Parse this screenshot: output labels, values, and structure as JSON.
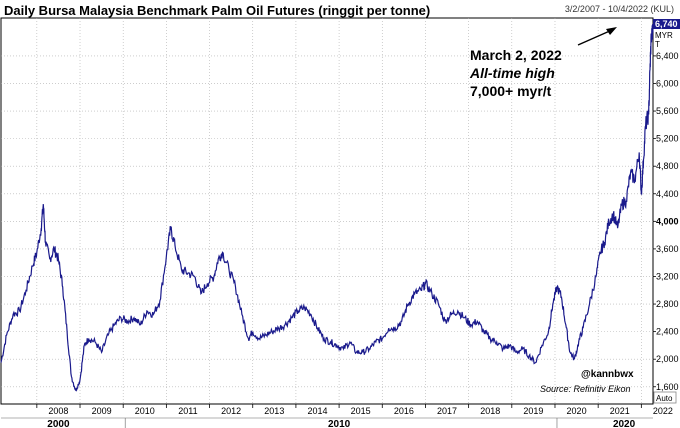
{
  "chart_data": {
    "type": "line",
    "title": "Daily Bursa Malaysia Benchmark Palm Oil Futures (ringgit per tonne)",
    "date_range": "3/2/2007 - 10/4/2022 (KUL)",
    "y_ticks": [
      "1,600",
      "2,000",
      "2,400",
      "2,800",
      "3,200",
      "3,600",
      "4,000",
      "4,400",
      "4,800",
      "5,200",
      "5,600",
      "6,000",
      "6,400"
    ],
    "y_tick_values": [
      1600,
      2000,
      2400,
      2800,
      3200,
      3600,
      4000,
      4400,
      4800,
      5200,
      5600,
      6000,
      6400
    ],
    "ylim": [
      1350,
      6950
    ],
    "xlim": [
      2007.17,
      2022.27
    ],
    "x_ticks": [
      "2008",
      "2009",
      "2010",
      "2011",
      "2012",
      "2013",
      "2014",
      "2015",
      "2016",
      "2017",
      "2018",
      "2019",
      "2020",
      "2021",
      "2022"
    ],
    "x_tick_values": [
      2008,
      2009,
      2010,
      2011,
      2012,
      2013,
      2014,
      2015,
      2016,
      2017,
      2018,
      2019,
      2020,
      2021,
      2022
    ],
    "x_major_labels": [
      "2000",
      "2010",
      "2020"
    ],
    "x_major_values": [
      2008.5,
      2015,
      2021.6
    ],
    "last_value": "6,740",
    "unit_label": "MYR\nT",
    "unit_lines": [
      "MYR",
      "T"
    ],
    "annotation": {
      "line1": "March 2, 2022",
      "line2": "All-time high",
      "line3": "7,000+ myr/t"
    },
    "handle": "@kannbwx",
    "source": "Source: Refinitiv Eikon",
    "auto_label": "Auto",
    "series": [
      {
        "x": [
          2007.17,
          2007.3,
          2007.45,
          2007.6,
          2007.75,
          2007.9,
          2008.0,
          2008.1,
          2008.15,
          2008.2,
          2008.3,
          2008.4,
          2008.5,
          2008.6,
          2008.7,
          2008.8,
          2008.9,
          2009.0,
          2009.1,
          2009.2,
          2009.35,
          2009.5,
          2009.65,
          2009.8,
          2009.95,
          2010.1,
          2010.25,
          2010.4,
          2010.55,
          2010.7,
          2010.85,
          2011.0,
          2011.1,
          2011.2,
          2011.35,
          2011.5,
          2011.65,
          2011.8,
          2011.95,
          2012.1,
          2012.2,
          2012.3,
          2012.45,
          2012.6,
          2012.75,
          2012.9,
          2013.0,
          2013.15,
          2013.3,
          2013.45,
          2013.6,
          2013.75,
          2013.9,
          2014.05,
          2014.2,
          2014.35,
          2014.5,
          2014.65,
          2014.8,
          2014.95,
          2015.1,
          2015.25,
          2015.4,
          2015.55,
          2015.7,
          2015.85,
          2016.0,
          2016.15,
          2016.3,
          2016.45,
          2016.6,
          2016.75,
          2016.9,
          2017.0,
          2017.15,
          2017.3,
          2017.45,
          2017.6,
          2017.75,
          2017.9,
          2018.05,
          2018.2,
          2018.35,
          2018.5,
          2018.65,
          2018.8,
          2018.95,
          2019.1,
          2019.25,
          2019.4,
          2019.55,
          2019.7,
          2019.85,
          2019.95,
          2020.05,
          2020.15,
          2020.25,
          2020.35,
          2020.45,
          2020.55,
          2020.65,
          2020.8,
          2020.95,
          2021.05,
          2021.15,
          2021.25,
          2021.35,
          2021.45,
          2021.55,
          2021.65,
          2021.75,
          2021.85,
          2021.95,
          2022.0,
          2022.05,
          2022.1,
          2022.17,
          2022.2,
          2022.23,
          2022.27
        ],
        "y": [
          1950,
          2350,
          2650,
          2700,
          3000,
          3350,
          3550,
          3900,
          4250,
          3700,
          3450,
          3600,
          3450,
          3050,
          2400,
          1750,
          1550,
          1700,
          2200,
          2300,
          2250,
          2100,
          2350,
          2500,
          2600,
          2550,
          2600,
          2500,
          2700,
          2650,
          2850,
          3500,
          3900,
          3650,
          3300,
          3250,
          3200,
          2950,
          3100,
          3200,
          3450,
          3550,
          3300,
          3050,
          2650,
          2300,
          2400,
          2300,
          2350,
          2400,
          2450,
          2500,
          2600,
          2700,
          2750,
          2650,
          2450,
          2300,
          2250,
          2200,
          2150,
          2250,
          2100,
          2100,
          2150,
          2250,
          2300,
          2450,
          2450,
          2550,
          2800,
          2950,
          3000,
          3100,
          2950,
          2800,
          2550,
          2650,
          2700,
          2600,
          2500,
          2550,
          2400,
          2300,
          2250,
          2150,
          2200,
          2100,
          2150,
          2050,
          1950,
          2200,
          2400,
          2800,
          3050,
          2900,
          2500,
          2100,
          2000,
          2250,
          2450,
          2800,
          3200,
          3550,
          3700,
          4000,
          4100,
          3900,
          4250,
          4300,
          4700,
          4600,
          5000,
          4400,
          4900,
          5400,
          5550,
          6200,
          6700,
          6740
        ]
      }
    ]
  }
}
